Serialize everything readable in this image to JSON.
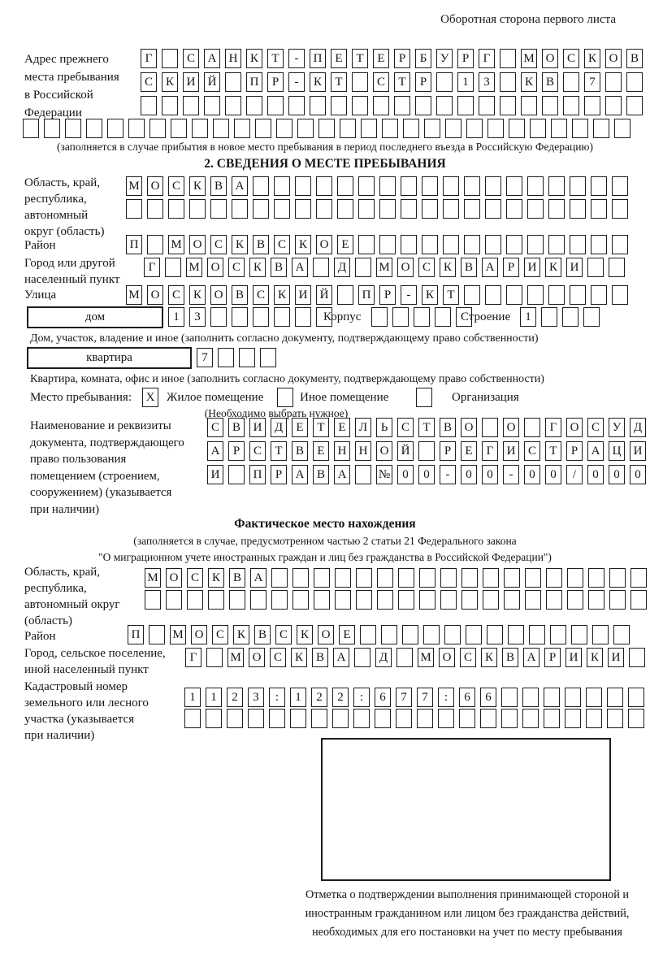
{
  "header_note": "Оборотная сторона первого листа",
  "prev_address": {
    "label": "Адрес прежнего\nместа пребывания\nв Российской\nФедерации",
    "row1": "Г САНКТ-ПЕТЕРБУРГ МОСКОВ",
    "row2": "СКИЙ ПР-КТ СТР 13 КВ 7",
    "row3": "",
    "row4": "",
    "note": "(заполняется в случае прибытия в новое место пребывания в период последнего въезда в Российскую Федерацию)"
  },
  "section2": {
    "title": "2. СВЕДЕНИЯ О МЕСТЕ ПРЕБЫВАНИЯ",
    "region": {
      "label": "Область, край,\nреспублика,\nавтономный\nокруг (область)",
      "row1": "МОСКВА",
      "row2": ""
    },
    "district": {
      "label": "Район",
      "value": "П МОСКВСКОЕ"
    },
    "city": {
      "label": "Город или другой\nнаселенный пункт",
      "value": "Г МОСКВА Д МОСКВАРИКИ"
    },
    "street": {
      "label": "Улица",
      "value": "МОСКОВСКИЙ ПР-КТ"
    },
    "house": {
      "label": "дом",
      "value": "13",
      "korpus_label": "Корпус",
      "korpus_value": "",
      "stroenie_label": "Строение",
      "stroenie_value": "1"
    },
    "house_note": "Дом, участок, владение и иное (заполнить согласно документу, подтверждающему право собственности)",
    "apartment": {
      "label": "квартира",
      "value": "7"
    },
    "apartment_note": "Квартира, комната, офис и иное (заполнить согласно документу, подтверждающему право собственности)",
    "stay_type": {
      "label": "Место пребывания:",
      "options": [
        {
          "label": "Жилое помещение",
          "mark": "X"
        },
        {
          "label": "Иное помещение",
          "mark": ""
        },
        {
          "label": "Организация",
          "mark": ""
        }
      ],
      "note": "(Необходимо выбрать нужное)"
    },
    "document": {
      "label": "Наименование и реквизиты\nдокумента, подтверждающего\nправо пользования\nпомещением (строением,\nсооружением) (указывается\nпри наличии)",
      "row1": "СВИДЕТЕЛЬСТВО О ГОСУД",
      "row2": "АРСТВЕННОЙ РЕГИСТРАЦИ",
      "row3": "И ПРАВА №00-00-00/000"
    }
  },
  "actual_location": {
    "title": "Фактическое место нахождения",
    "note1": "(заполняется в случае, предусмотренном частью 2 статьи 21 Федерального закона",
    "note2": "\"О миграционном учете иностранных граждан и лиц без гражданства в Российской Федерации\")",
    "region": {
      "label": "Область, край,\nреспублика,\nавтономный округ\n(область)",
      "row1": "МОСКВА",
      "row2": ""
    },
    "district": {
      "label": "Район",
      "value": "П МОСКВСКОЕ"
    },
    "city": {
      "label": "Город, сельское поселение,\nиной населенный пункт",
      "value": "Г МОСКВА Д МОСКВАРИКИ"
    },
    "cadastral": {
      "label": "Кадастровый номер\nземельного или лесного\nучастка (указывается\nпри наличии)",
      "row1": "1123:122:677:66",
      "row2": ""
    },
    "stamp_note": "Отметка о подтверждении выполнения принимающей стороной и иностранным гражданином или лицом без гражданства действий, необходимых для его постановки на учет по месту пребывания"
  }
}
